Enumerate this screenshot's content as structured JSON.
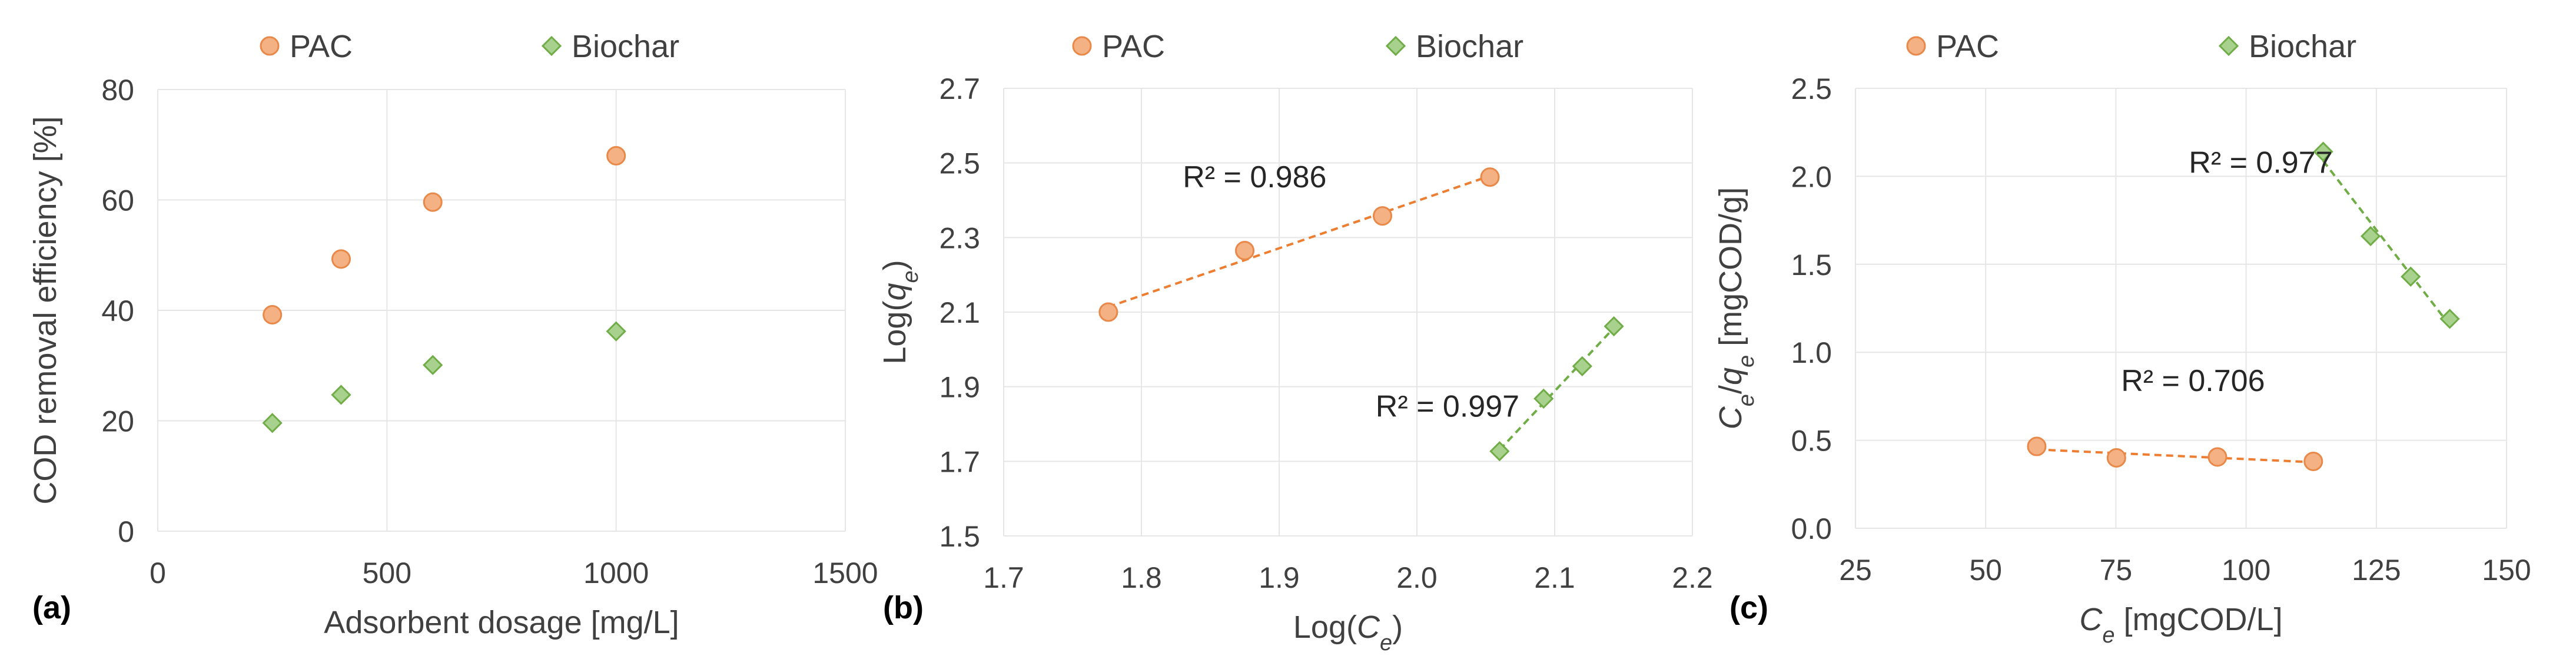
{
  "colors": {
    "pac_fill": "#F4B183",
    "pac_stroke": "#E8894A",
    "pac_trend": "#ED7D31",
    "bio_fill": "#A9D18E",
    "bio_stroke": "#70AD47",
    "bio_trend": "#70AD47",
    "grid": "#E6E6E6",
    "text": "#404040"
  },
  "chart_data": [
    {
      "id": "a",
      "type": "scatter",
      "panel_label": "(a)",
      "title": "",
      "xlabel": "Adsorbent dosage [mg/L]",
      "ylabel": "COD removal efficiency [%]",
      "xlim": [
        0,
        1500
      ],
      "ylim": [
        0,
        80
      ],
      "xticks": [
        0,
        500,
        1000,
        1500
      ],
      "yticks": [
        0,
        20,
        40,
        60,
        80
      ],
      "xtick_labels": [
        "0",
        "500",
        "1000",
        "1500"
      ],
      "ytick_labels": [
        "0",
        "20",
        "40",
        "60",
        "80"
      ],
      "grid": true,
      "legend_position": "top",
      "series": [
        {
          "name": "PAC",
          "marker": "circle",
          "x": [
            250,
            400,
            600,
            1000
          ],
          "y": [
            39.2,
            49.3,
            59.6,
            68.0
          ],
          "trendline": false,
          "r2_label": ""
        },
        {
          "name": "Biochar",
          "marker": "diamond",
          "x": [
            250,
            400,
            600,
            1000
          ],
          "y": [
            19.6,
            24.7,
            30.1,
            36.2
          ],
          "trendline": false,
          "r2_label": ""
        }
      ]
    },
    {
      "id": "b",
      "type": "scatter",
      "panel_label": "(b)",
      "title": "",
      "xlabel": "Log(C_e)",
      "xlabel_parts": [
        "Log(",
        "C",
        "e",
        ")"
      ],
      "ylabel": "Log(q_e)",
      "ylabel_parts": [
        "Log(",
        "q",
        "e",
        ")"
      ],
      "xlim": [
        1.7,
        2.2
      ],
      "ylim": [
        1.5,
        2.7
      ],
      "xticks": [
        1.7,
        1.8,
        1.9,
        2.0,
        2.1,
        2.2
      ],
      "yticks": [
        1.5,
        1.7,
        1.9,
        2.1,
        2.3,
        2.5,
        2.7
      ],
      "xtick_labels": [
        "1.7",
        "1.8",
        "1.9",
        "2.0",
        "2.1",
        "2.2"
      ],
      "ytick_labels": [
        "1.5",
        "1.7",
        "1.9",
        "2.1",
        "2.3",
        "2.5",
        "2.7"
      ],
      "grid": true,
      "legend_position": "top",
      "series": [
        {
          "name": "PAC",
          "marker": "circle",
          "x": [
            1.776,
            1.875,
            1.975,
            2.053
          ],
          "y": [
            2.1,
            2.265,
            2.358,
            2.462
          ],
          "trendline": true,
          "r2_label": "R² = 0.986",
          "r2_at": [
            1.83,
            2.435
          ]
        },
        {
          "name": "Biochar",
          "marker": "diamond",
          "x": [
            2.06,
            2.092,
            2.12,
            2.143
          ],
          "y": [
            1.727,
            1.868,
            1.955,
            2.062
          ],
          "trendline": true,
          "r2_label": "R² = 0.997",
          "r2_at": [
            1.97,
            1.82
          ]
        }
      ]
    },
    {
      "id": "c",
      "type": "scatter",
      "panel_label": "(c)",
      "title": "",
      "xlabel": "C_e [mgCOD/L]",
      "xlabel_parts": [
        "",
        "C",
        "e",
        " [mgCOD/L]"
      ],
      "ylabel": "C_e/q_e [mgCOD/g]",
      "ylabel_parts": [
        "",
        "C",
        "e",
        "/",
        "q",
        "e",
        " [mgCOD/g]"
      ],
      "xlim": [
        25,
        150
      ],
      "ylim": [
        0.0,
        2.5
      ],
      "xticks": [
        25,
        50,
        75,
        100,
        125,
        150
      ],
      "yticks": [
        0.0,
        0.5,
        1.0,
        1.5,
        2.0,
        2.5
      ],
      "xtick_labels": [
        "25",
        "50",
        "75",
        "100",
        "125",
        "150"
      ],
      "ytick_labels": [
        "0.0",
        "0.5",
        "1.0",
        "1.5",
        "2.0",
        "2.5"
      ],
      "grid": true,
      "legend_position": "top",
      "series": [
        {
          "name": "PAC",
          "marker": "circle",
          "x": [
            59.8,
            75.1,
            94.5,
            112.9
          ],
          "y": [
            0.465,
            0.4,
            0.405,
            0.38
          ],
          "trendline": true,
          "r2_label": "R² = 0.706",
          "r2_at": [
            76,
            0.78
          ]
        },
        {
          "name": "Biochar",
          "marker": "diamond",
          "x": [
            114.8,
            123.9,
            131.6,
            139.1
          ],
          "y": [
            2.14,
            1.66,
            1.43,
            1.19
          ],
          "trendline": true,
          "r2_label": "R² = 0.977",
          "r2_at": [
            89,
            2.02
          ]
        }
      ]
    }
  ]
}
